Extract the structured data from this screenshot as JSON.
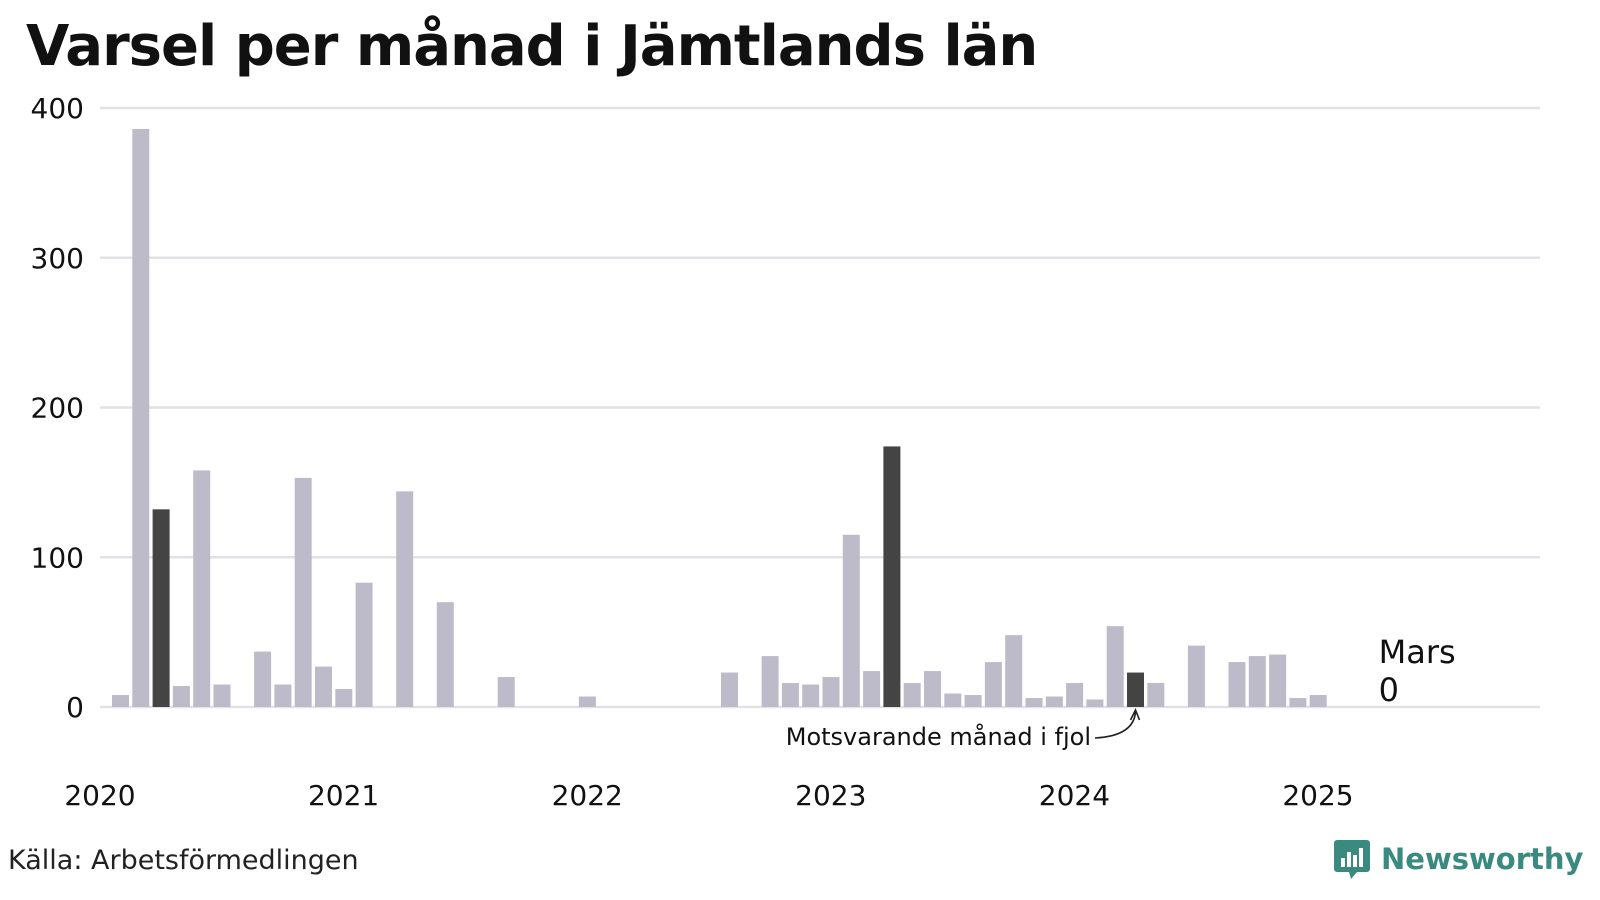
{
  "title": "Varsel per månad i Jämtlands län",
  "source": "Källa: Arbetsförmedlingen",
  "brand": {
    "name": "Newsworthy",
    "icon": "chart-bubble-icon",
    "color": "#3a8a7f"
  },
  "chart_data": {
    "type": "bar",
    "title": "Varsel per månad i Jämtlands län",
    "xlabel": "",
    "ylabel": "",
    "ylim": [
      0,
      400
    ],
    "yticks": [
      0,
      100,
      200,
      300,
      400
    ],
    "xtick_labels": [
      "2020",
      "2021",
      "2022",
      "2023",
      "2024",
      "2025"
    ],
    "categories": [
      "2020-01",
      "2020-02",
      "2020-03",
      "2020-04",
      "2020-05",
      "2020-06",
      "2020-07",
      "2020-08",
      "2020-09",
      "2020-10",
      "2020-11",
      "2020-12",
      "2021-01",
      "2021-02",
      "2021-03",
      "2021-04",
      "2021-05",
      "2021-06",
      "2021-07",
      "2021-08",
      "2021-09",
      "2021-10",
      "2021-11",
      "2021-12",
      "2022-01",
      "2022-02",
      "2022-03",
      "2022-04",
      "2022-05",
      "2022-06",
      "2022-07",
      "2022-08",
      "2022-09",
      "2022-10",
      "2022-11",
      "2022-12",
      "2023-01",
      "2023-02",
      "2023-03",
      "2023-04",
      "2023-05",
      "2023-06",
      "2023-07",
      "2023-08",
      "2023-09",
      "2023-10",
      "2023-11",
      "2023-12",
      "2024-01",
      "2024-02",
      "2024-03",
      "2024-04",
      "2024-05",
      "2024-06",
      "2024-07",
      "2024-08",
      "2024-09",
      "2024-10",
      "2024-11",
      "2024-12",
      "2025-01",
      "2025-02",
      "2025-03"
    ],
    "values": [
      8,
      386,
      132,
      14,
      158,
      15,
      0,
      37,
      15,
      153,
      27,
      12,
      83,
      0,
      144,
      0,
      70,
      0,
      0,
      20,
      0,
      0,
      0,
      7,
      0,
      0,
      0,
      0,
      0,
      0,
      23,
      0,
      34,
      16,
      15,
      20,
      115,
      24,
      174,
      16,
      24,
      9,
      8,
      30,
      48,
      6,
      7,
      16,
      5,
      54,
      23,
      16,
      0,
      41,
      0,
      30,
      34,
      35,
      6,
      8,
      0,
      0,
      0
    ],
    "highlight_categories": [
      "2020-03",
      "2023-03",
      "2024-03"
    ],
    "colors": {
      "bar": "#bdbbc9",
      "highlight": "#444444",
      "grid": "#e2e1e6",
      "text": "#111111"
    },
    "annotations": [
      {
        "category": "2024-03",
        "text": "Motsvarande månad i fjol"
      },
      {
        "category": "2025-03",
        "text": "Mars",
        "value_text": "0"
      }
    ],
    "grid": true,
    "legend": "none"
  }
}
